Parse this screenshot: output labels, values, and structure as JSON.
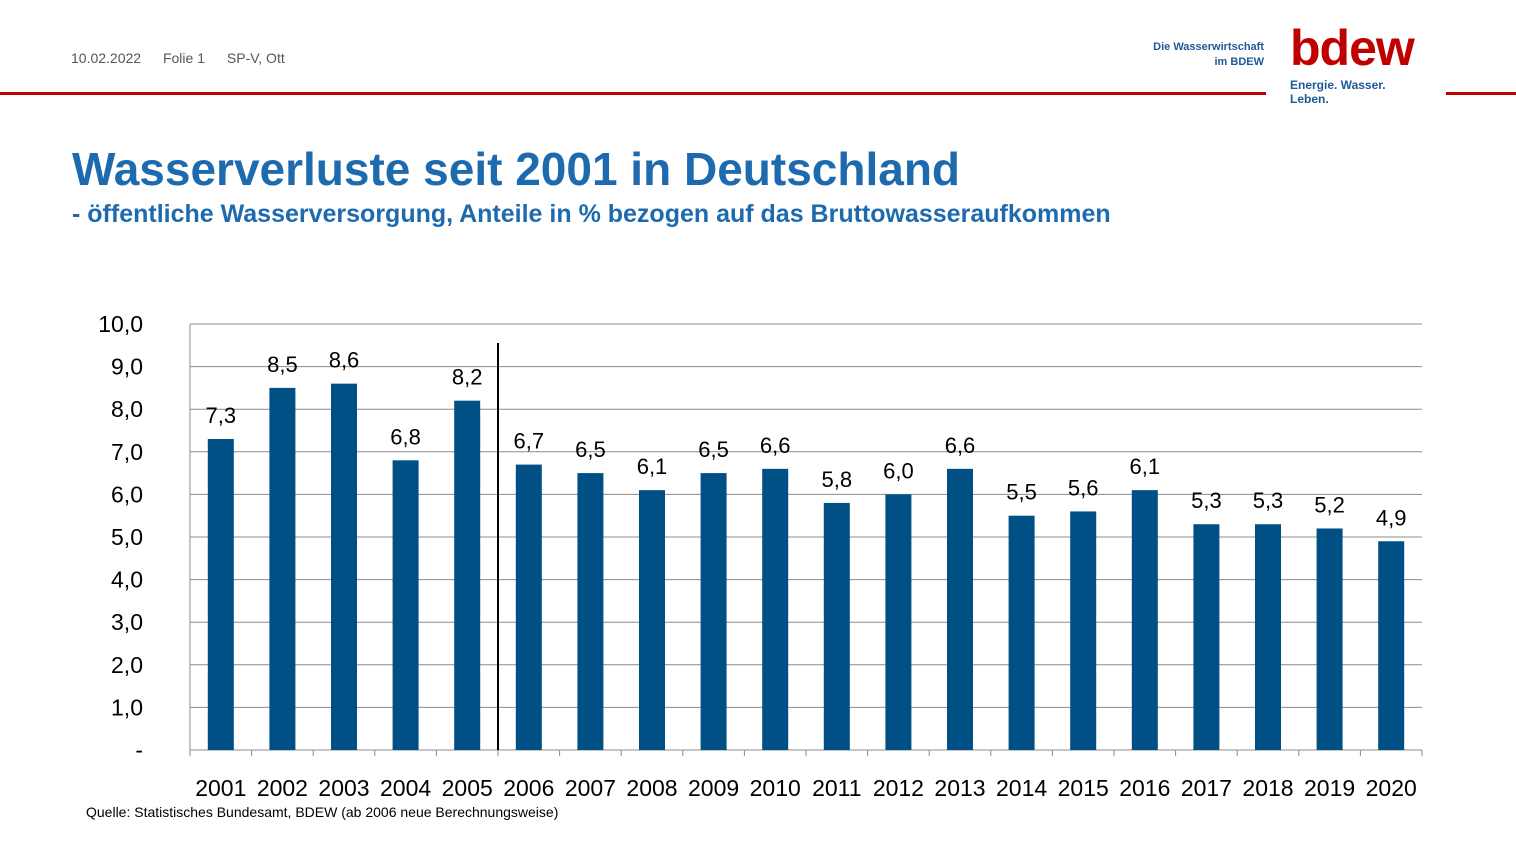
{
  "header": {
    "date": "10.02.2022",
    "slide": "Folie 1",
    "author": "SP-V, Ott",
    "org_line1": "Die Wasserwirtschaft",
    "org_line2": "im BDEW",
    "logo_word": "bdew",
    "logo_tagline": "Energie. Wasser. Leben."
  },
  "title": "Wasserverluste seit 2001 in Deutschland",
  "subtitle": "- öffentliche Wasserversorgung, Anteile in % bezogen auf das Bruttowasseraufkommen",
  "source": "Quelle: Statistisches Bundesamt, BDEW (ab 2006 neue Berechnungsweise)",
  "colors": {
    "bar": "#005085",
    "accent_red": "#c00000",
    "title_blue": "#1e6aaf"
  },
  "chart_data": {
    "type": "bar",
    "categories": [
      "2001",
      "2002",
      "2003",
      "2004",
      "2005",
      "2006",
      "2007",
      "2008",
      "2009",
      "2010",
      "2011",
      "2012",
      "2013",
      "2014",
      "2015",
      "2016",
      "2017",
      "2018",
      "2019",
      "2020"
    ],
    "values": [
      7.3,
      8.5,
      8.6,
      6.8,
      8.2,
      6.7,
      6.5,
      6.1,
      6.5,
      6.6,
      5.8,
      6.0,
      6.6,
      5.5,
      5.6,
      6.1,
      5.3,
      5.3,
      5.2,
      4.9
    ],
    "data_labels": [
      "7,3",
      "8,5",
      "8,6",
      "6,8",
      "8,2",
      "6,7",
      "6,5",
      "6,1",
      "6,5",
      "6,6",
      "5,8",
      "6,0",
      "6,6",
      "5,5",
      "5,6",
      "6,1",
      "5,3",
      "5,3",
      "5,2",
      "4,9"
    ],
    "yticks": [
      0,
      1,
      2,
      3,
      4,
      5,
      6,
      7,
      8,
      9,
      10
    ],
    "ytick_labels": [
      "-",
      "1,0",
      "2,0",
      "3,0",
      "4,0",
      "5,0",
      "6,0",
      "7,0",
      "8,0",
      "9,0",
      "10,0"
    ],
    "ylim": [
      0,
      10
    ],
    "grid": true,
    "separator_after": "2005",
    "xlabel": "",
    "ylabel": ""
  }
}
